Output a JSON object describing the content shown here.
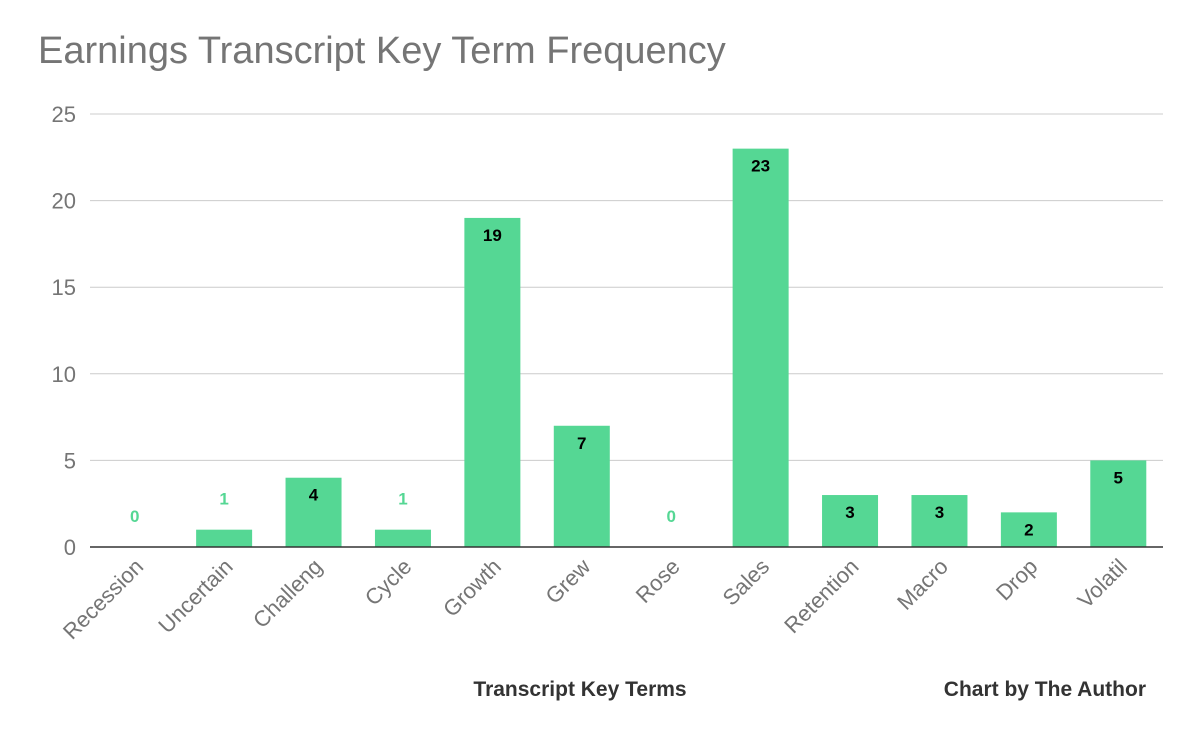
{
  "chart_data": {
    "type": "bar",
    "title": "Earnings Transcript Key Term Frequency",
    "xlabel": "Transcript Key Terms",
    "ylabel": "",
    "credit": "Chart by The Author",
    "categories": [
      "Recession",
      "Uncertain",
      "Challeng",
      "Cycle",
      "Growth",
      "Grew",
      "Rose",
      "Sales",
      "Retention",
      "Macro",
      "Drop",
      "Volatil"
    ],
    "values": [
      0,
      1,
      4,
      1,
      19,
      7,
      0,
      23,
      3,
      3,
      2,
      5
    ],
    "ylim": [
      0,
      25
    ],
    "yticks": [
      0,
      5,
      10,
      15,
      20,
      25
    ],
    "grid": true,
    "legend": "none",
    "colors": {
      "bar": "#55d794",
      "label_inside": "#000000",
      "label_outside": "#55d794",
      "gridline": "#cccccc",
      "axis": "#333333"
    }
  }
}
